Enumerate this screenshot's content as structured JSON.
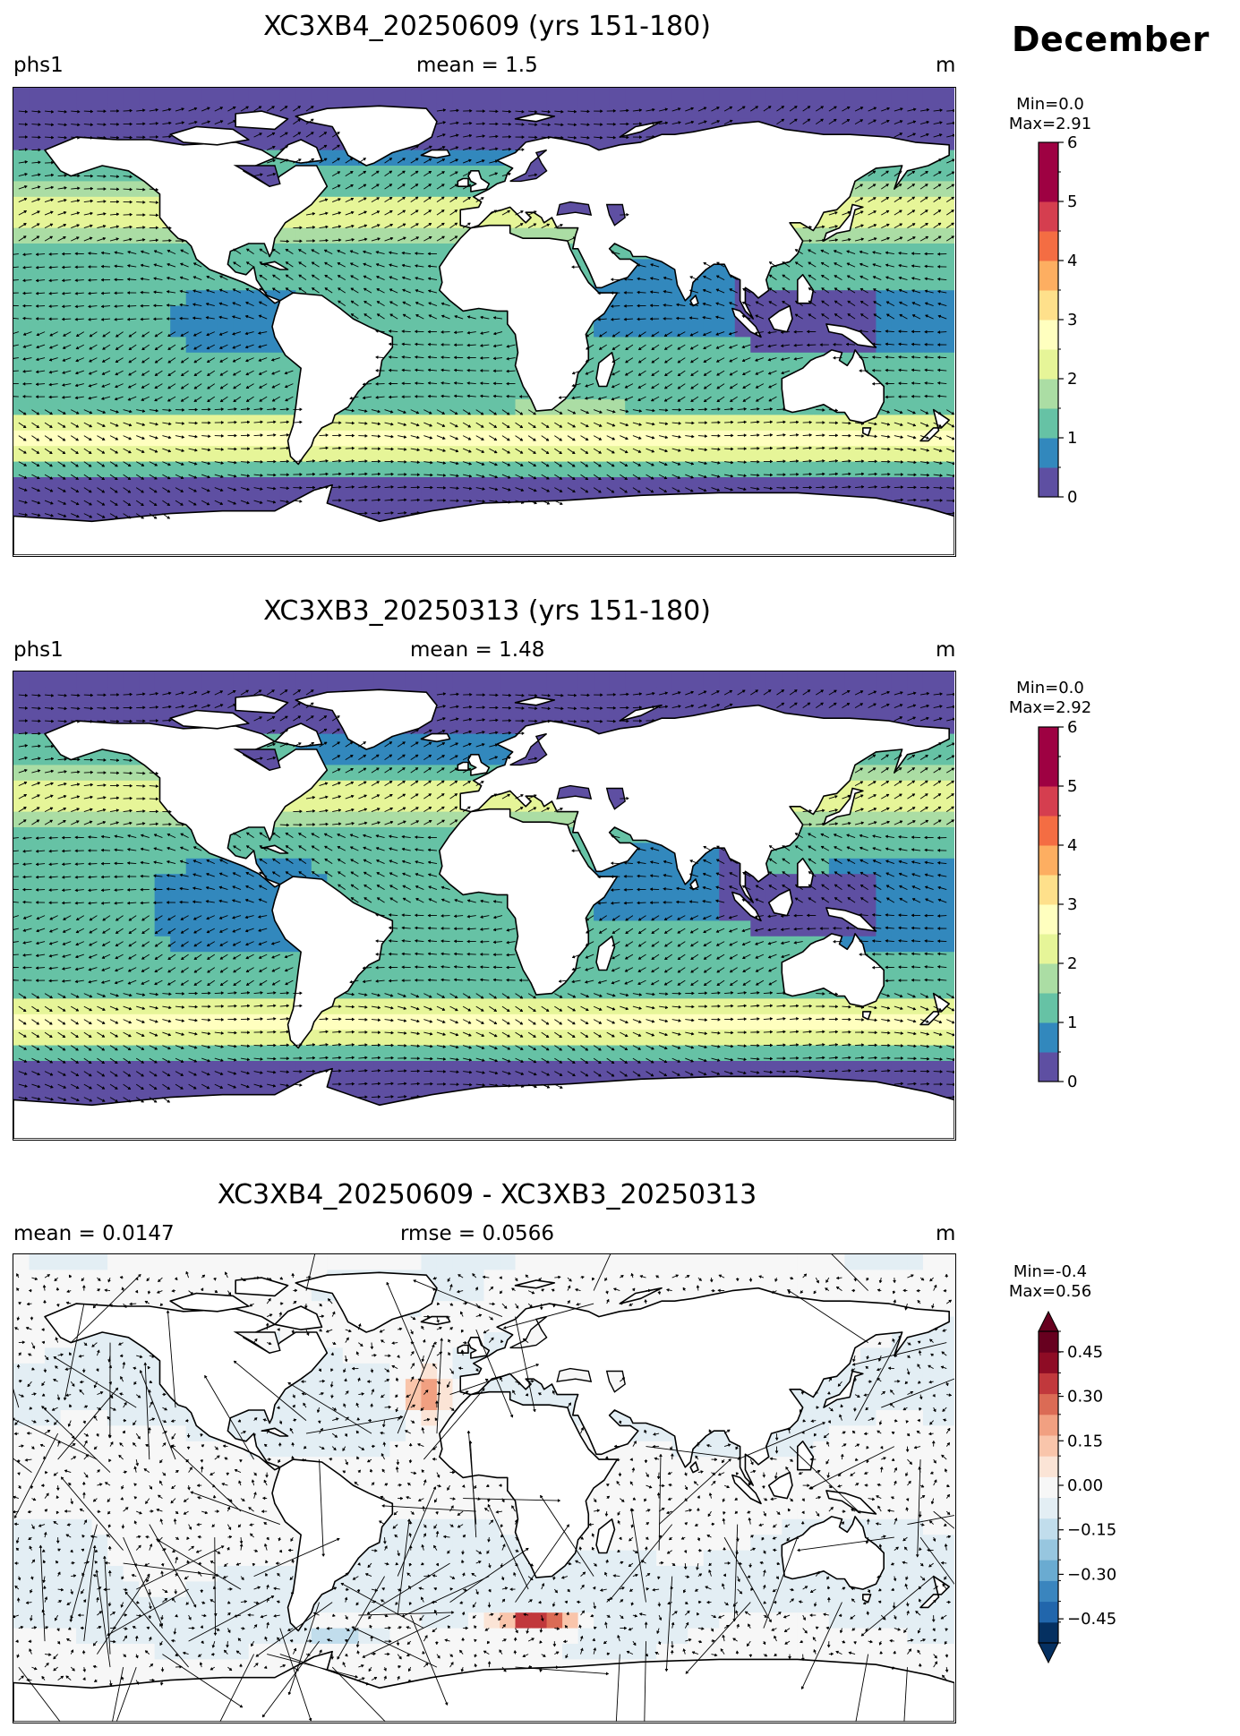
{
  "header": {
    "month": "December"
  },
  "panels": [
    {
      "title": "XC3XB4_20250609 (yrs 151-180)",
      "left_label": "phs1",
      "center_label": "mean = 1.5",
      "right_label": "m",
      "colorbar": {
        "min_label": "Min=0.0",
        "max_label": "Max=2.91",
        "ticks": [
          "0",
          "1",
          "2",
          "3",
          "4",
          "5",
          "6"
        ],
        "colors": [
          "#5e4fa2",
          "#3288bd",
          "#66c2a5",
          "#abdda4",
          "#e6f598",
          "#ffffbf",
          "#fee08b",
          "#fdae61",
          "#f46d43",
          "#d53e4f",
          "#9e0142",
          "#9e0142"
        ]
      }
    },
    {
      "title": "XC3XB3_20250313 (yrs 151-180)",
      "left_label": "phs1",
      "center_label": "mean = 1.48",
      "right_label": "m",
      "colorbar": {
        "min_label": "Min=0.0",
        "max_label": "Max=2.92",
        "ticks": [
          "0",
          "1",
          "2",
          "3",
          "4",
          "5",
          "6"
        ],
        "colors": [
          "#5e4fa2",
          "#3288bd",
          "#66c2a5",
          "#abdda4",
          "#e6f598",
          "#ffffbf",
          "#fee08b",
          "#fdae61",
          "#f46d43",
          "#d53e4f",
          "#9e0142",
          "#9e0142"
        ]
      }
    },
    {
      "title": "XC3XB4_20250609 - XC3XB3_20250313",
      "left_label": "mean = 0.0147",
      "center_label": "rmse = 0.0566",
      "right_label": "m",
      "colorbar": {
        "min_label": "Min=-0.4",
        "max_label": "Max=0.56",
        "ticks": [
          "−0.45",
          "−0.30",
          "−0.15",
          "0.00",
          "0.15",
          "0.30",
          "0.45"
        ],
        "colors": [
          "#053061",
          "#2166ac",
          "#3a85be",
          "#6aabd1",
          "#97c6df",
          "#c1ddec",
          "#e3eef4",
          "#f7f7f7",
          "#fbe4d6",
          "#f9c5ab",
          "#f1a081",
          "#db6b55",
          "#c1383c",
          "#8e0c25",
          "#67001f"
        ]
      }
    }
  ]
}
